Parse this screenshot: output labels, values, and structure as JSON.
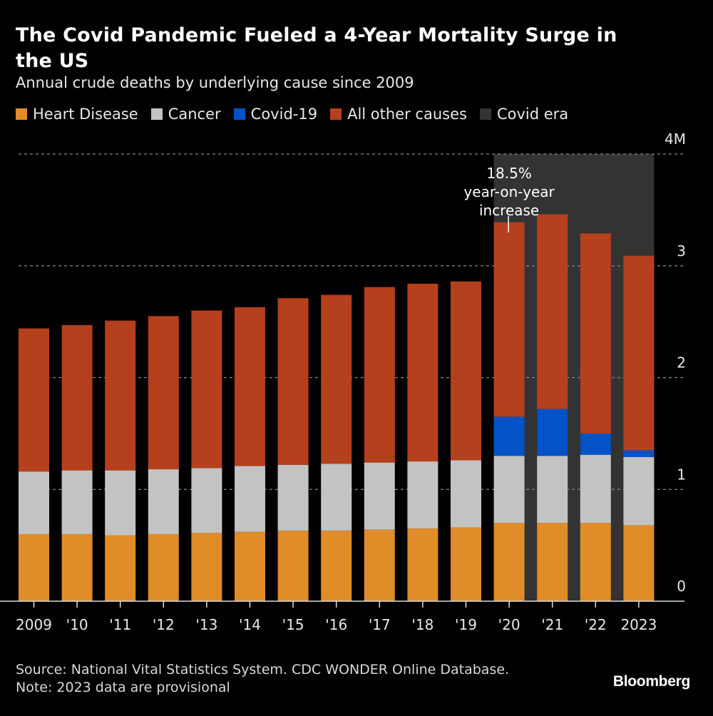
{
  "title": "The Covid Pandemic Fueled a 4-Year Mortality Surge in the US",
  "subtitle": "Annual crude deaths by underlying cause since 2009",
  "legend": [
    {
      "label": "Heart Disease",
      "color": "#e08c28"
    },
    {
      "label": "Cancer",
      "color": "#c3c3c3"
    },
    {
      "label": "Covid-19",
      "color": "#0352c6"
    },
    {
      "label": "All other causes",
      "color": "#b5401d"
    },
    {
      "label": "Covid era",
      "color": "#333333"
    }
  ],
  "annotation": {
    "lines": [
      "18.5%",
      "year-on-year",
      "increase"
    ]
  },
  "footer": {
    "source": "Source: National Vital Statistics System. CDC WONDER Online Database.",
    "note": "Note: 2023 data are provisional"
  },
  "logo": "Bloomberg",
  "chart_data": {
    "type": "bar",
    "stacked": true,
    "categories": [
      "2009",
      "'10",
      "'11",
      "'12",
      "'13",
      "'14",
      "'15",
      "'16",
      "'17",
      "'18",
      "'19",
      "'20",
      "'21",
      "'22",
      "2023"
    ],
    "series": [
      {
        "name": "Heart Disease",
        "color": "#e08c28",
        "values": [
          0.6,
          0.6,
          0.59,
          0.6,
          0.61,
          0.62,
          0.63,
          0.63,
          0.64,
          0.65,
          0.66,
          0.7,
          0.7,
          0.7,
          0.68
        ]
      },
      {
        "name": "Cancer",
        "color": "#c3c3c3",
        "values": [
          0.56,
          0.57,
          0.58,
          0.58,
          0.58,
          0.59,
          0.59,
          0.6,
          0.6,
          0.6,
          0.6,
          0.6,
          0.6,
          0.61,
          0.61
        ]
      },
      {
        "name": "Covid-19",
        "color": "#0352c6",
        "values": [
          0,
          0,
          0,
          0,
          0,
          0,
          0,
          0,
          0,
          0,
          0,
          0.35,
          0.42,
          0.19,
          0.06
        ]
      },
      {
        "name": "All other causes",
        "color": "#b5401d",
        "values": [
          1.28,
          1.3,
          1.34,
          1.37,
          1.41,
          1.42,
          1.49,
          1.51,
          1.57,
          1.59,
          1.6,
          1.74,
          1.74,
          1.79,
          1.74
        ]
      }
    ],
    "highlight_range": {
      "label": "Covid era",
      "from": "'20",
      "to": "2023"
    },
    "ylim": [
      0,
      4
    ],
    "y_unit": "millions",
    "yticks": [
      {
        "value": 0,
        "label": "0"
      },
      {
        "value": 1,
        "label": "1"
      },
      {
        "value": 2,
        "label": "2"
      },
      {
        "value": 3,
        "label": "3"
      },
      {
        "value": 4,
        "label": "4M"
      }
    ],
    "grid": true,
    "y_axis_position": "right",
    "legend_position": "top-left"
  }
}
